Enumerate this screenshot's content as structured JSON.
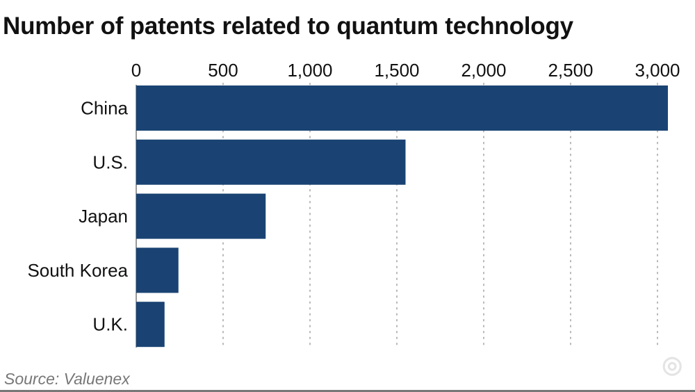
{
  "chart_data": {
    "type": "bar",
    "orientation": "horizontal",
    "title": "Number of patents related to quantum technology",
    "categories": [
      "China",
      "U.S.",
      "Japan",
      "South Korea",
      "U.K."
    ],
    "values": [
      3060,
      1550,
      745,
      243,
      163
    ],
    "xlim": [
      0,
      3000
    ],
    "xticks": [
      0,
      500,
      1000,
      1500,
      2000,
      2500,
      3000
    ],
    "xtick_labels": [
      "0",
      "500",
      "1,000",
      "1,500",
      "2,000",
      "2,500",
      "3,000"
    ],
    "axis_position": "top",
    "grid": "vertical dotted",
    "bar_color": "#1a4373",
    "source": "Source: Valuenex"
  },
  "watermark": "智东西"
}
